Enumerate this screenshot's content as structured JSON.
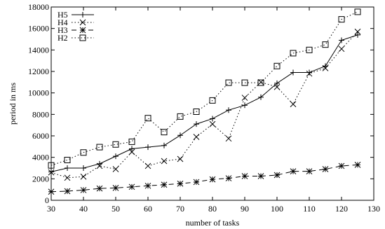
{
  "chart_data": {
    "type": "line",
    "title": "",
    "xlabel": "number of tasks",
    "ylabel": "period in ms",
    "xlim": [
      30,
      130
    ],
    "ylim": [
      0,
      18000
    ],
    "xticks": [
      30,
      40,
      50,
      60,
      70,
      80,
      90,
      100,
      110,
      120,
      130
    ],
    "yticks": [
      0,
      2000,
      4000,
      6000,
      8000,
      10000,
      12000,
      14000,
      16000,
      18000
    ],
    "grid": false,
    "legend_position": "top-left",
    "x": [
      30,
      35,
      40,
      45,
      50,
      55,
      60,
      65,
      70,
      75,
      80,
      85,
      90,
      95,
      100,
      105,
      110,
      115,
      120,
      125
    ],
    "series": [
      {
        "name": "H5",
        "marker": "plus",
        "line": "solid",
        "values": [
          2650,
          3000,
          3000,
          3400,
          4100,
          4800,
          4950,
          5100,
          6050,
          7100,
          7600,
          8400,
          8850,
          9600,
          10900,
          11900,
          11900,
          12500,
          14900,
          15400
        ]
      },
      {
        "name": "H4",
        "marker": "cross",
        "line": "dotted",
        "values": [
          2600,
          2100,
          2200,
          3200,
          2900,
          4500,
          3200,
          3650,
          3850,
          5900,
          7100,
          5750,
          9550,
          11000,
          10550,
          8950,
          11800,
          12300,
          14100,
          15700
        ]
      },
      {
        "name": "H3",
        "marker": "star",
        "line": "dashed",
        "values": [
          800,
          850,
          950,
          1100,
          1150,
          1250,
          1350,
          1450,
          1550,
          1700,
          1950,
          2050,
          2250,
          2250,
          2350,
          2700,
          2700,
          2900,
          3200,
          3300
        ]
      },
      {
        "name": "H2",
        "marker": "square",
        "line": "dotted",
        "values": [
          3250,
          3750,
          4450,
          4950,
          5200,
          5450,
          7650,
          6350,
          7800,
          8250,
          9300,
          10950,
          10950,
          10950,
          12500,
          13700,
          14000,
          14500,
          16850,
          17550
        ]
      }
    ]
  }
}
